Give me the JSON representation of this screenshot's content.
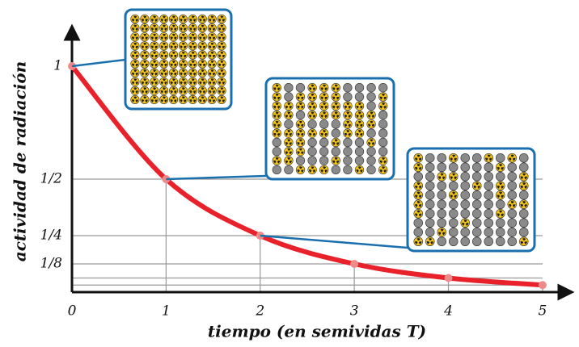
{
  "chart_data": {
    "type": "line",
    "x_label": "tiempo (en semividas T)",
    "y_label": "actividad de radiación",
    "x": [
      0,
      1,
      2,
      3,
      4,
      5
    ],
    "series": [
      {
        "color": "#e8212a",
        "values": [
          1,
          0.5,
          0.25,
          0.125,
          0.0625,
          0.03125
        ]
      }
    ],
    "xlim": [
      0,
      5.25
    ],
    "xticks": [
      0,
      1,
      2,
      3,
      4,
      5
    ],
    "ylim": [
      0,
      1.15
    ],
    "yticks": [
      1,
      {
        "value": 0.5,
        "label": "1/2"
      },
      {
        "value": 0.25,
        "label": "1/4"
      },
      {
        "value": 0.125,
        "label": "1/8"
      }
    ],
    "grid": true
  }
}
